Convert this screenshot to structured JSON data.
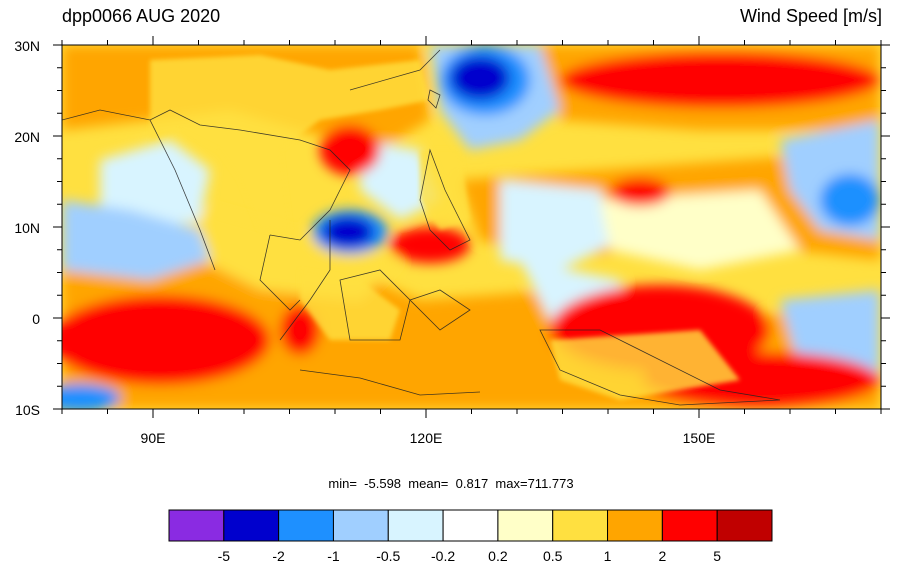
{
  "header": {
    "left_title": "dpp0066 AUG 2020",
    "right_title": "Wind Speed [m/s]"
  },
  "axes": {
    "lat_labels": [
      "30N",
      "20N",
      "10N",
      "0",
      "10S"
    ],
    "lon_labels": [
      "90E",
      "120E",
      "150E"
    ],
    "lat_range": [
      -10,
      30
    ],
    "lon_range": [
      80,
      170
    ]
  },
  "stats": {
    "min_label": "min=",
    "min": "-5.598",
    "mean_label": "mean=",
    "mean": "0.817",
    "max_label": "max=",
    "max": "711.773"
  },
  "colorbar": {
    "colors": [
      "#8a2be2",
      "#0000cd",
      "#1e90ff",
      "#a0cfff",
      "#d8f4ff",
      "#ffffff",
      "#ffffc8",
      "#ffe040",
      "#ffa500",
      "#ff0000",
      "#c00000"
    ],
    "labels": [
      "-5",
      "-2",
      "-1",
      "-0.5",
      "-0.2",
      "0.2",
      "0.5",
      "1",
      "2",
      "5"
    ]
  }
}
